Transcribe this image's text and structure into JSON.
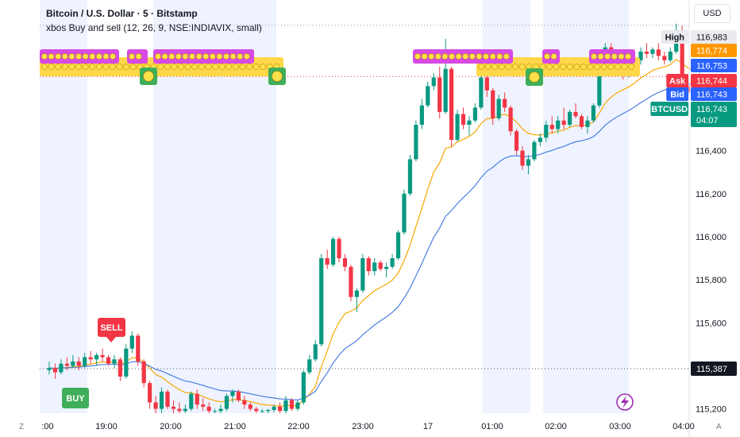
{
  "header": {
    "title": "Bitcoin / U.S. Dollar · 5 · Bitstamp",
    "indicator": "xbos Buy and sell (12, 26, 9, NSE:INDIAVIX, small)",
    "currency_button": "USD"
  },
  "corner": {
    "left": "Z",
    "right": "A"
  },
  "price_tags": {
    "high": {
      "label": "High",
      "value": "116,983"
    },
    "orange": {
      "value": "116,774",
      "color": "#ff9800"
    },
    "blue": {
      "value": "116,753",
      "color": "#2962ff"
    },
    "ask": {
      "label": "Ask",
      "value": "116,744",
      "color": "#f23645"
    },
    "bid": {
      "label": "Bid",
      "value": "116,743",
      "color": "#2962ff"
    },
    "last": {
      "label": "BTCUSD",
      "value": "116,743",
      "countdown": "04:07",
      "color": "#089981"
    },
    "line": {
      "value": "115,387"
    }
  },
  "signals": {
    "buy": "BUY",
    "sell": "SELL"
  },
  "chart_data": {
    "type": "candlestick",
    "y_ticks": [
      "116,600",
      "116,400",
      "116,200",
      "116,000",
      "115,800",
      "115,600",
      "115,200"
    ],
    "y_tick_values": [
      116600,
      116400,
      116200,
      116000,
      115800,
      115600,
      115200
    ],
    "x_ticks": [
      ":00",
      "19:00",
      "20:00",
      "21:00",
      "22:00",
      "23:00",
      "17",
      "01:00",
      "02:00",
      "03:00",
      "04:00"
    ],
    "ylim": [
      115180,
      117100
    ],
    "bar_interval_minutes": 5,
    "first_bar": "18:05",
    "candles": [
      [
        115380,
        115420,
        115360,
        115390
      ],
      [
        115390,
        115410,
        115340,
        115370
      ],
      [
        115370,
        115430,
        115360,
        115410
      ],
      [
        115410,
        115440,
        115380,
        115400
      ],
      [
        115400,
        115450,
        115390,
        115420
      ],
      [
        115420,
        115440,
        115380,
        115400
      ],
      [
        115400,
        115460,
        115390,
        115440
      ],
      [
        115440,
        115470,
        115410,
        115430
      ],
      [
        115430,
        115460,
        115400,
        115450
      ],
      [
        115450,
        115480,
        115420,
        115440
      ],
      [
        115440,
        115450,
        115400,
        115410
      ],
      [
        115410,
        115450,
        115390,
        115430
      ],
      [
        115430,
        115440,
        115330,
        115350
      ],
      [
        115350,
        115500,
        115340,
        115480
      ],
      [
        115480,
        115560,
        115460,
        115540
      ],
      [
        115540,
        115550,
        115400,
        115420
      ],
      [
        115420,
        115430,
        115300,
        115320
      ],
      [
        115320,
        115330,
        115200,
        115230
      ],
      [
        115230,
        115260,
        115180,
        115200
      ],
      [
        115200,
        115300,
        115180,
        115280
      ],
      [
        115280,
        115290,
        115200,
        115210
      ],
      [
        115210,
        115240,
        115180,
        115200
      ],
      [
        115200,
        115230,
        115180,
        115190
      ],
      [
        115190,
        115220,
        115180,
        115200
      ],
      [
        115200,
        115280,
        115190,
        115270
      ],
      [
        115270,
        115290,
        115200,
        115220
      ],
      [
        115220,
        115250,
        115190,
        115210
      ],
      [
        115210,
        115230,
        115180,
        115190
      ],
      [
        115190,
        115200,
        115180,
        115190
      ],
      [
        115190,
        115220,
        115180,
        115200
      ],
      [
        115200,
        115270,
        115190,
        115260
      ],
      [
        115260,
        115290,
        115230,
        115280
      ],
      [
        115280,
        115290,
        115230,
        115240
      ],
      [
        115240,
        115260,
        115200,
        115220
      ],
      [
        115220,
        115230,
        115190,
        115200
      ],
      [
        115200,
        115210,
        115180,
        115190
      ],
      [
        115190,
        115200,
        115180,
        115190
      ],
      [
        115190,
        115200,
        115180,
        115195
      ],
      [
        115195,
        115220,
        115185,
        115210
      ],
      [
        115210,
        115230,
        115180,
        115190
      ],
      [
        115190,
        115260,
        115180,
        115240
      ],
      [
        115240,
        115250,
        115190,
        115200
      ],
      [
        115200,
        115240,
        115190,
        115230
      ],
      [
        115230,
        115380,
        115220,
        115370
      ],
      [
        115370,
        115450,
        115360,
        115430
      ],
      [
        115430,
        115520,
        115420,
        115500
      ],
      [
        115500,
        115920,
        115490,
        115900
      ],
      [
        115900,
        115940,
        115850,
        115870
      ],
      [
        115870,
        116000,
        115860,
        115990
      ],
      [
        115990,
        116000,
        115880,
        115900
      ],
      [
        115900,
        115920,
        115840,
        115860
      ],
      [
        115860,
        115870,
        115700,
        115720
      ],
      [
        115720,
        115760,
        115650,
        115750
      ],
      [
        115750,
        115920,
        115740,
        115900
      ],
      [
        115900,
        115910,
        115820,
        115840
      ],
      [
        115840,
        115900,
        115820,
        115880
      ],
      [
        115880,
        115890,
        115840,
        115850
      ],
      [
        115850,
        115880,
        115810,
        115860
      ],
      [
        115860,
        115920,
        115850,
        115900
      ],
      [
        115900,
        116030,
        115890,
        116020
      ],
      [
        116020,
        116220,
        116010,
        116200
      ],
      [
        116200,
        116380,
        116190,
        116360
      ],
      [
        116360,
        116540,
        116350,
        116520
      ],
      [
        116520,
        116640,
        116500,
        116610
      ],
      [
        116610,
        116720,
        116600,
        116700
      ],
      [
        116700,
        116760,
        116680,
        116740
      ],
      [
        116740,
        116790,
        116550,
        116580
      ],
      [
        116580,
        116920,
        116570,
        116780
      ],
      [
        116780,
        116790,
        116420,
        116450
      ],
      [
        116450,
        116590,
        116440,
        116570
      ],
      [
        116570,
        116600,
        116500,
        116520
      ],
      [
        116520,
        116560,
        116470,
        116540
      ],
      [
        116540,
        116620,
        116530,
        116600
      ],
      [
        116600,
        116760,
        116590,
        116740
      ],
      [
        116740,
        116770,
        116650,
        116680
      ],
      [
        116680,
        116690,
        116520,
        116550
      ],
      [
        116550,
        116660,
        116540,
        116640
      ],
      [
        116640,
        116670,
        116580,
        116600
      ],
      [
        116600,
        116610,
        116470,
        116490
      ],
      [
        116490,
        116500,
        116380,
        116400
      ],
      [
        116400,
        116420,
        116310,
        116330
      ],
      [
        116330,
        116380,
        116290,
        116360
      ],
      [
        116360,
        116450,
        116350,
        116440
      ],
      [
        116440,
        116480,
        116420,
        116460
      ],
      [
        116460,
        116540,
        116440,
        116520
      ],
      [
        116520,
        116560,
        116480,
        116500
      ],
      [
        116500,
        116560,
        116480,
        116540
      ],
      [
        116540,
        116600,
        116500,
        116520
      ],
      [
        116520,
        116590,
        116510,
        116580
      ],
      [
        116580,
        116620,
        116550,
        116560
      ],
      [
        116560,
        116570,
        116500,
        116510
      ],
      [
        116510,
        116560,
        116480,
        116540
      ],
      [
        116540,
        116620,
        116530,
        116610
      ],
      [
        116610,
        116820,
        116600,
        116800
      ],
      [
        116800,
        116900,
        116780,
        116880
      ],
      [
        116880,
        116900,
        116780,
        116800
      ],
      [
        116800,
        116830,
        116750,
        116780
      ],
      [
        116780,
        116800,
        116730,
        116760
      ],
      [
        116760,
        116790,
        116740,
        116770
      ],
      [
        116770,
        116830,
        116760,
        116820
      ],
      [
        116820,
        116880,
        116800,
        116860
      ],
      [
        116860,
        116900,
        116830,
        116850
      ],
      [
        116850,
        116880,
        116830,
        116870
      ],
      [
        116870,
        116900,
        116820,
        116840
      ],
      [
        116840,
        116860,
        116800,
        116820
      ],
      [
        116820,
        116880,
        116810,
        116860
      ],
      [
        116860,
        116990,
        116850,
        116960
      ],
      [
        116960,
        116980,
        116680,
        116700
      ],
      [
        116700,
        116720,
        116660,
        116670
      ],
      [
        116670,
        116690,
        116640,
        116680
      ],
      [
        116680,
        116760,
        116670,
        116750
      ]
    ],
    "series": [
      {
        "name": "EMA 12",
        "color": "#f7a600"
      },
      {
        "name": "EMA 26",
        "color": "#4a7fe0"
      }
    ]
  }
}
